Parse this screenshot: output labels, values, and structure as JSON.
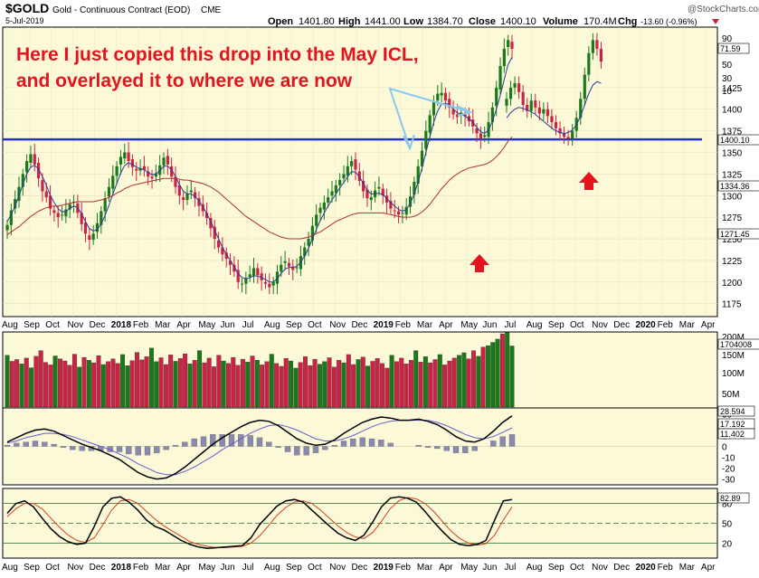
{
  "header": {
    "symbol": "$GOLD",
    "name": "Gold - Continuous Contract (EOD)",
    "exchange": "CME",
    "date": "5-Jul-2019",
    "open_label": "Open",
    "open": "1401.80",
    "high_label": "High",
    "high": "1441.00",
    "low_label": "Low",
    "low": "1384.70",
    "close_label": "Close",
    "close": "1400.10",
    "volume_label": "Volume",
    "volume": "170.4M",
    "chg_label": "Chg",
    "chg": "-13.60 (-0.96%)",
    "watermark": "@StockCharts.com"
  },
  "annotation": {
    "line1": "Here I just copied this drop into the May ICL,",
    "line2": "and overlayed it to where we are now"
  },
  "colors": {
    "up": "#1a7a1a",
    "down": "#cc2244",
    "ma_short": "#2a3a9a",
    "ma_long": "#b03030",
    "panel_bg": "#fbf9d8",
    "support": "#2233cc",
    "arrow": "#e3141e",
    "annotation": "#e3141e"
  },
  "chart_data": [
    {
      "type": "candlestick",
      "panel": "price",
      "ylim": [
        1160,
        1495
      ],
      "y_ticks": [
        1175,
        1200,
        1225,
        1250,
        1275,
        1300,
        1325,
        1350,
        1375,
        1400,
        1425
      ],
      "y_ticks_upper_right": [
        "10",
        "30",
        "50",
        "90"
      ],
      "value_labels": [
        "71.59",
        "1400.10",
        "1334.36",
        "1271.45"
      ],
      "support_level": 1365,
      "x_labels": [
        "Aug",
        "Sep",
        "Oct",
        "Nov",
        "Dec",
        "2018",
        "Feb",
        "Mar",
        "Apr",
        "May",
        "Jun",
        "Jul",
        "Aug",
        "Sep",
        "Oct",
        "Nov",
        "Dec",
        "2019",
        "Feb",
        "Mar",
        "Apr",
        "May",
        "Jun",
        "Jul",
        "Aug",
        "Sep",
        "Oct",
        "Nov",
        "Dec",
        "2020",
        "Feb",
        "Mar",
        "Apr"
      ],
      "series": [
        {
          "name": "price",
          "values": [
            1266,
            1283,
            1296,
            1310,
            1325,
            1340,
            1348,
            1336,
            1320,
            1305,
            1298,
            1285,
            1280,
            1275,
            1278,
            1284,
            1290,
            1293,
            1280,
            1267,
            1256,
            1249,
            1256,
            1268,
            1282,
            1297,
            1310,
            1323,
            1334,
            1345,
            1350,
            1340,
            1333,
            1329,
            1332,
            1330,
            1322,
            1320,
            1326,
            1335,
            1344,
            1336,
            1322,
            1310,
            1300,
            1295,
            1302,
            1306,
            1297,
            1288,
            1282,
            1274,
            1262,
            1250,
            1240,
            1232,
            1227,
            1220,
            1212,
            1200,
            1198,
            1204,
            1209,
            1216,
            1208,
            1202,
            1198,
            1194,
            1200,
            1212,
            1220,
            1224,
            1218,
            1214,
            1217,
            1230,
            1240,
            1250,
            1265,
            1278,
            1286,
            1292,
            1298,
            1305,
            1312,
            1318,
            1325,
            1334,
            1340,
            1330,
            1317,
            1305,
            1297,
            1298,
            1306,
            1310,
            1300,
            1292,
            1285,
            1282,
            1278,
            1280,
            1287,
            1299,
            1316,
            1334,
            1352,
            1375,
            1393,
            1408,
            1418,
            1419,
            1410,
            1402,
            1394,
            1391,
            1396,
            1392,
            1386,
            1380,
            1372,
            1366,
            1370,
            1385,
            1402,
            1425,
            1450,
            1470,
            1480,
            1470
          ]
        },
        {
          "name": "ma_short",
          "values": [
            1270,
            1278,
            1288,
            1300,
            1313,
            1325,
            1333,
            1335,
            1331,
            1322,
            1312,
            1300,
            1292,
            1285,
            1281,
            1282,
            1285,
            1288,
            1286,
            1279,
            1270,
            1262,
            1259,
            1261,
            1267,
            1277,
            1289,
            1302,
            1314,
            1326,
            1335,
            1338,
            1336,
            1333,
            1331,
            1330,
            1327,
            1324,
            1325,
            1329,
            1334,
            1334,
            1330,
            1322,
            1313,
            1305,
            1302,
            1302,
            1299,
            1294,
            1287,
            1279,
            1270,
            1260,
            1250,
            1240,
            1232,
            1225,
            1218,
            1210,
            1205,
            1204,
            1205,
            1207,
            1207,
            1205,
            1203,
            1200,
            1200,
            1204,
            1210,
            1215,
            1217,
            1217,
            1218,
            1223,
            1230,
            1239,
            1250,
            1261,
            1271,
            1280,
            1288,
            1295,
            1302,
            1309,
            1315,
            1322,
            1328,
            1327,
            1322,
            1314,
            1306,
            1302,
            1302,
            1303,
            1301,
            1297,
            1292,
            1288,
            1284,
            1282,
            1284,
            1291,
            1302,
            1316,
            1332,
            1350,
            1368,
            1385,
            1398,
            1406,
            1407,
            1405,
            1400,
            1396,
            1394,
            1392,
            1389,
            1385,
            1379,
            1374,
            1372,
            1376,
            1386,
            1400,
            1416,
            1434,
            1452,
            1460
          ]
        },
        {
          "name": "ma_long",
          "values": [
            1255,
            1258,
            1261,
            1264,
            1268,
            1272,
            1276,
            1279,
            1282,
            1284,
            1286,
            1287,
            1288,
            1288,
            1289,
            1290,
            1291,
            1292,
            1293,
            1293,
            1293,
            1293,
            1293,
            1294,
            1295,
            1296,
            1298,
            1300,
            1303,
            1305,
            1308,
            1310,
            1312,
            1313,
            1314,
            1315,
            1316,
            1317,
            1318,
            1319,
            1320,
            1320,
            1320,
            1320,
            1319,
            1318,
            1318,
            1317,
            1316,
            1315,
            1314,
            1312,
            1310,
            1307,
            1304,
            1300,
            1296,
            1292,
            1288,
            1284,
            1280,
            1276,
            1273,
            1270,
            1267,
            1264,
            1261,
            1258,
            1256,
            1254,
            1252,
            1251,
            1250,
            1250,
            1250,
            1250,
            1251,
            1252,
            1254,
            1256,
            1258,
            1261,
            1264,
            1267,
            1270,
            1272,
            1274,
            1276,
            1278,
            1279,
            1280,
            1280,
            1280,
            1280,
            1280,
            1280,
            1280,
            1279,
            1278,
            1277,
            1276,
            1275,
            1275,
            1275,
            1276,
            1278,
            1281,
            1285,
            1290,
            1296,
            1302,
            1308,
            1313,
            1318,
            1322,
            1325,
            1328,
            1330,
            1332,
            1333,
            1334,
            1335,
            1336,
            1338,
            1341,
            1345,
            1350,
            1356,
            1363,
            1368
          ]
        }
      ]
    },
    {
      "type": "bar",
      "panel": "volume",
      "ylim": [
        0,
        200
      ],
      "y_ticks": [
        "50M",
        "100M",
        "150M",
        "200M"
      ],
      "value_labels": [
        "1704008"
      ],
      "series": [
        {
          "name": "volume",
          "values": [
            145,
            128,
            133,
            121,
            137,
            110,
            142,
            158,
            125,
            118,
            143,
            135,
            129,
            117,
            148,
            112,
            139,
            131,
            124,
            144,
            119,
            127,
            135,
            122,
            147,
            116,
            130,
            153,
            132,
            141,
            165,
            127,
            138,
            119,
            146,
            128,
            136,
            149,
            121,
            131,
            158,
            124,
            137,
            113,
            145,
            129,
            122,
            139,
            117,
            134,
            126,
            143,
            131,
            118,
            127,
            148,
            122,
            114,
            136,
            129,
            109,
            125,
            141,
            116,
            134,
            120,
            127,
            138,
            112,
            131,
            124,
            147,
            119,
            133,
            140,
            115,
            128,
            136,
            122,
            109,
            145,
            127,
            137,
            121,
            131,
            158,
            126,
            141,
            124,
            133,
            147,
            118,
            129,
            137,
            145,
            152,
            135,
            158,
            142,
            168,
            172,
            181,
            190,
            205,
            208,
            171
          ]
        }
      ]
    },
    {
      "type": "line",
      "panel": "macd",
      "y_ticks": [
        "30",
        "20",
        "10",
        "0",
        "-10",
        "-20",
        "-30"
      ],
      "value_labels": [
        "28.594",
        "17.192",
        "11.402"
      ],
      "series": [
        {
          "name": "macd",
          "values": [
            4,
            8,
            12,
            15,
            16,
            14,
            10,
            6,
            2,
            -1,
            -4,
            -8,
            -12,
            -18,
            -24,
            -28,
            -30,
            -29,
            -25,
            -19,
            -12,
            -5,
            2,
            8,
            13,
            18,
            22,
            24,
            23,
            19,
            13,
            7,
            3,
            1,
            2,
            6,
            12,
            17,
            22,
            25,
            27,
            26,
            24,
            24,
            25,
            23,
            20,
            15,
            9,
            5,
            4,
            7,
            14,
            22,
            28
          ]
        },
        {
          "name": "signal",
          "values": [
            3,
            5,
            8,
            10,
            12,
            12,
            11,
            9,
            6,
            3,
            0,
            -3,
            -7,
            -11,
            -16,
            -20,
            -24,
            -26,
            -26,
            -23,
            -19,
            -14,
            -9,
            -3,
            2,
            7,
            12,
            16,
            19,
            20,
            18,
            15,
            11,
            7,
            5,
            5,
            7,
            10,
            14,
            18,
            21,
            23,
            24,
            24,
            24,
            24,
            22,
            19,
            15,
            11,
            8,
            7,
            9,
            13,
            17
          ]
        },
        {
          "name": "histogram",
          "values": [
            1,
            3,
            4,
            5,
            4,
            2,
            -1,
            -3,
            -4,
            -4,
            -4,
            -5,
            -5,
            -7,
            -8,
            -8,
            -6,
            -3,
            1,
            4,
            7,
            9,
            11,
            11,
            11,
            11,
            10,
            8,
            4,
            -1,
            -5,
            -8,
            -8,
            -6,
            -3,
            1,
            5,
            7,
            8,
            7,
            6,
            3,
            0,
            0,
            1,
            -1,
            -2,
            -4,
            -6,
            -6,
            -4,
            0,
            5,
            9,
            11
          ]
        }
      ]
    },
    {
      "type": "line",
      "panel": "stochastic",
      "y_ticks": [
        "20",
        "50",
        "80"
      ],
      "value_labels": [
        "82.89"
      ],
      "series": [
        {
          "name": "%K",
          "values": [
            65,
            80,
            84,
            75,
            58,
            42,
            30,
            22,
            18,
            20,
            45,
            75,
            88,
            90,
            82,
            70,
            55,
            45,
            40,
            32,
            24,
            18,
            14,
            12,
            13,
            14,
            15,
            16,
            28,
            48,
            62,
            76,
            84,
            86,
            82,
            70,
            58,
            46,
            35,
            28,
            24,
            32,
            52,
            75,
            88,
            90,
            88,
            82,
            68,
            52,
            38,
            25,
            18,
            16,
            18,
            24,
            55,
            84,
            86
          ]
        },
        {
          "name": "%D",
          "values": [
            60,
            72,
            80,
            80,
            72,
            58,
            44,
            32,
            24,
            21,
            28,
            48,
            70,
            84,
            86,
            80,
            68,
            56,
            46,
            38,
            30,
            22,
            18,
            15,
            13,
            13,
            14,
            15,
            20,
            31,
            46,
            62,
            74,
            82,
            84,
            80,
            70,
            58,
            46,
            36,
            29,
            27,
            36,
            53,
            72,
            84,
            89,
            87,
            80,
            68,
            53,
            38,
            27,
            20,
            17,
            19,
            32,
            55,
            75
          ]
        }
      ]
    }
  ]
}
